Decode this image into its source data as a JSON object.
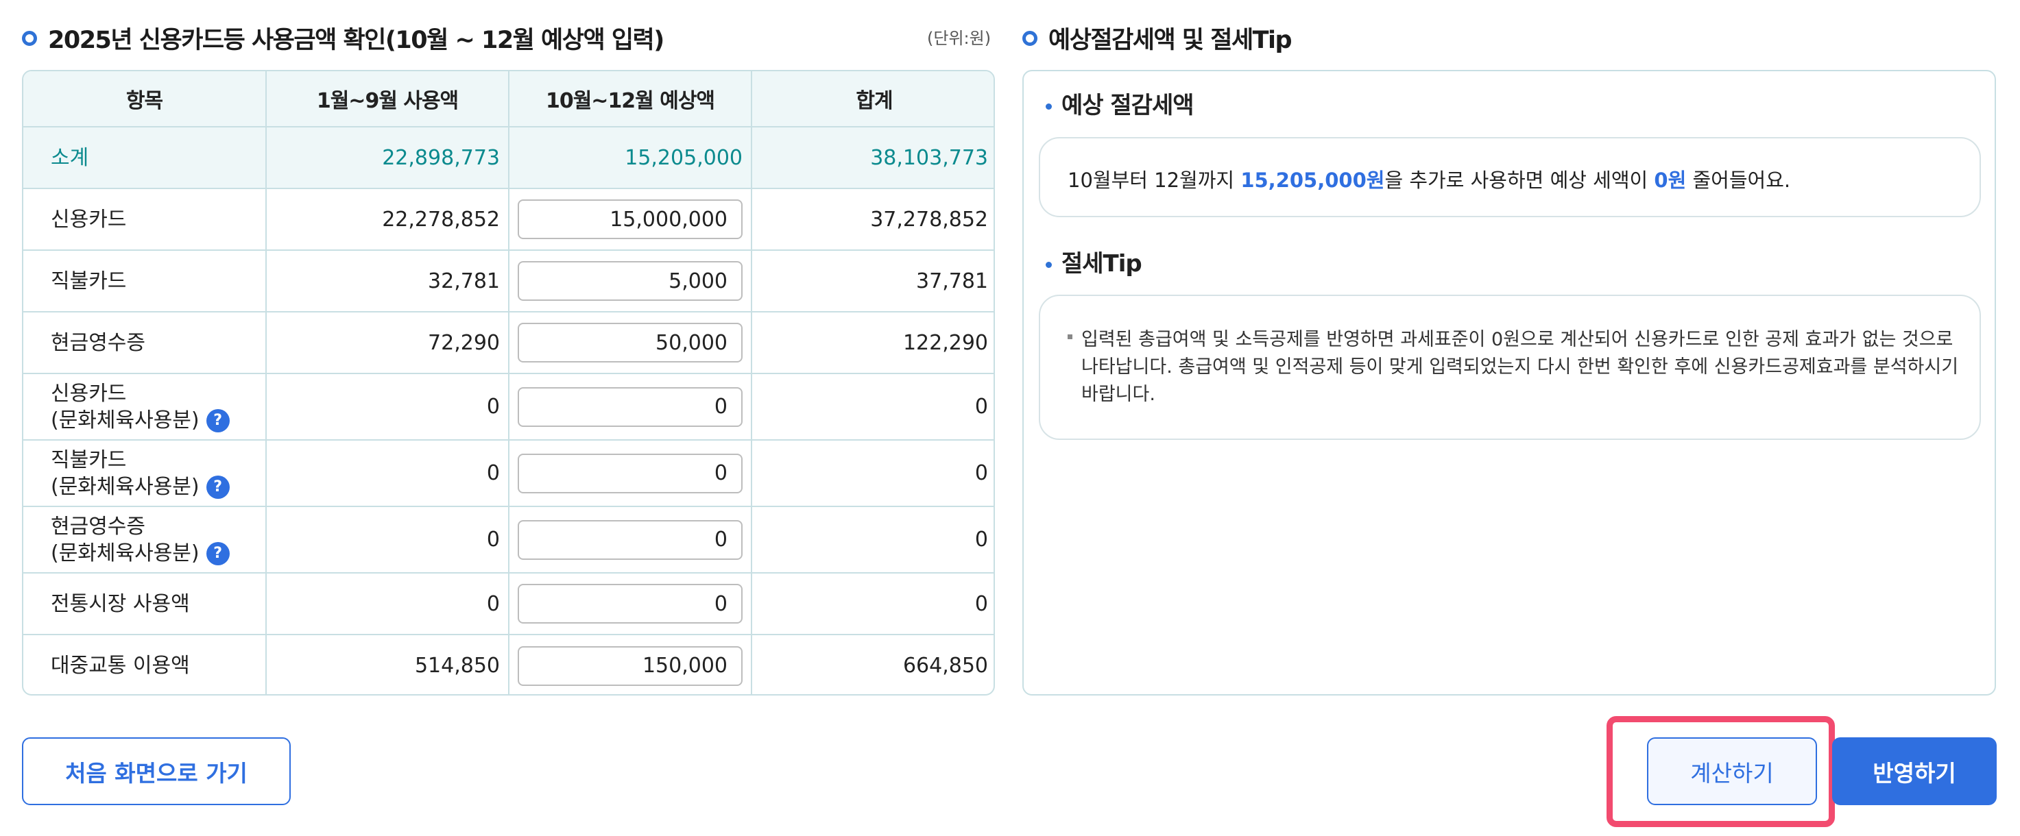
{
  "left_section": {
    "title": "2025년 신용카드등 사용금액 확인(10월 ~ 12월 예상액 입력)",
    "unit": "(단위:원)"
  },
  "table": {
    "headers": [
      "항목",
      "1월~9월 사용액",
      "10월~12월 예상액",
      "합계"
    ],
    "subtotal": {
      "label": "소계",
      "jan_sep": "22,898,773",
      "oct_dec": "15,205,000",
      "total": "38,103,773"
    },
    "rows": [
      {
        "label": "신용카드",
        "sub": "",
        "help": false,
        "jan_sep": "22,278,852",
        "oct_dec": "15,000,000",
        "total": "37,278,852"
      },
      {
        "label": "직불카드",
        "sub": "",
        "help": false,
        "jan_sep": "32,781",
        "oct_dec": "5,000",
        "total": "37,781"
      },
      {
        "label": "현금영수증",
        "sub": "",
        "help": false,
        "jan_sep": "72,290",
        "oct_dec": "50,000",
        "total": "122,290"
      },
      {
        "label": "신용카드",
        "sub": "(문화체육사용분)",
        "help": true,
        "jan_sep": "0",
        "oct_dec": "0",
        "total": "0"
      },
      {
        "label": "직불카드",
        "sub": "(문화체육사용분)",
        "help": true,
        "jan_sep": "0",
        "oct_dec": "0",
        "total": "0"
      },
      {
        "label": "현금영수증",
        "sub": "(문화체육사용분)",
        "help": true,
        "jan_sep": "0",
        "oct_dec": "0",
        "total": "0"
      },
      {
        "label": "전통시장 사용액",
        "sub": "",
        "help": false,
        "jan_sep": "0",
        "oct_dec": "0",
        "total": "0"
      },
      {
        "label": "대중교통 이용액",
        "sub": "",
        "help": false,
        "jan_sep": "514,850",
        "oct_dec": "150,000",
        "total": "664,850"
      }
    ],
    "help_glyph": "?"
  },
  "right_section": {
    "title": "예상절감세액 및 절세Tip",
    "savings": {
      "title": "예상 절감세액",
      "text_before": "10월부터 12월까지 ",
      "amount": "15,205,000원",
      "text_middle": "을 추가로 사용하면 예상 세액이 ",
      "tax": "0원",
      "text_after": " 줄어들어요."
    },
    "tip": {
      "title": "절세Tip",
      "text": "입력된 총급여액 및 소득공제를 반영하면 과세표준이 0원으로 계산되어 신용카드로 인한 공제 효과가 없는 것으로 나타납니다. 총급여액 및 인적공제 등이 맞게 입력되었는지 다시 한번 확인한 후에 신용카드공제효과를 분석하시기 바랍니다."
    }
  },
  "buttons": {
    "home": "처음 화면으로 가기",
    "calculate": "계산하기",
    "apply": "반영하기"
  },
  "colors": {
    "accent": "#2f6fe0",
    "teal": "#0b8a8e",
    "highlight_frame": "#f24b6f",
    "table_border": "#c8dfe3",
    "header_bg": "#eef7f8"
  }
}
